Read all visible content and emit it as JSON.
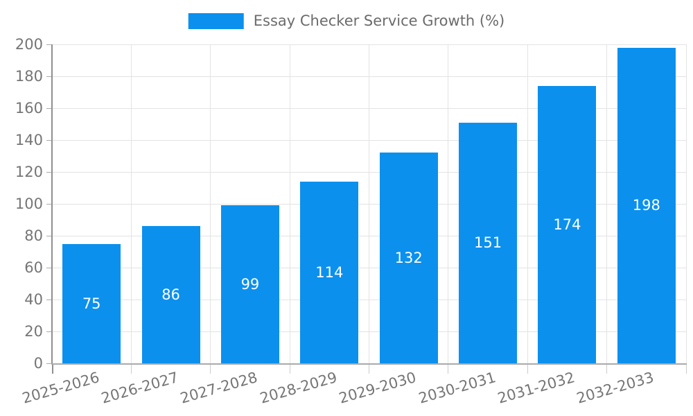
{
  "legend": {
    "label": "Essay Checker Service Growth (%)"
  },
  "chart_data": {
    "type": "bar",
    "title": "Essay Checker Service Growth (%)",
    "categories": [
      "2025-2026",
      "2026-2027",
      "2027-2028",
      "2028-2029",
      "2029-2030",
      "2030-2031",
      "2031-2032",
      "2032-2033"
    ],
    "values": [
      75,
      86,
      99,
      114,
      132,
      151,
      174,
      198
    ],
    "yticks": [
      0,
      20,
      40,
      60,
      80,
      100,
      120,
      140,
      160,
      180,
      200
    ],
    "ylim": [
      0,
      200
    ],
    "xlabel": "",
    "ylabel": "",
    "grid": true,
    "legend_position": "top-center",
    "value_labels": "centered-inside-bars",
    "colors": {
      "bar": "#0b90ee",
      "value_label": "#ffffff",
      "axis_text": "#757575",
      "legend_text": "#6b6b6b",
      "gridline": "#e3e3e3",
      "axis_line": "#8f8f8f",
      "baseline": "#aaaaaa",
      "background": "#ffffff"
    }
  }
}
